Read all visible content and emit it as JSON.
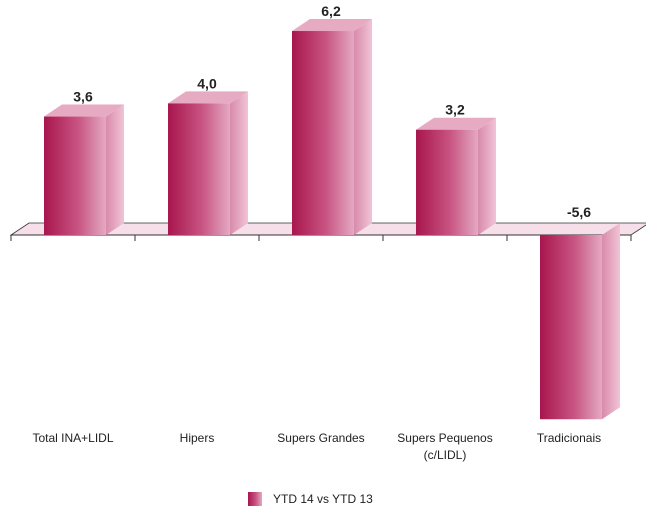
{
  "chart_data": {
    "type": "bar",
    "categories": [
      "Total INA+LIDL",
      "Hipers",
      "Supers Grandes",
      "Supers Pequenos (c/LIDL)",
      "Tradicionais"
    ],
    "category_lines": [
      [
        "Total INA+LIDL"
      ],
      [
        "Hipers"
      ],
      [
        "Supers Grandes"
      ],
      [
        "Supers Pequenos",
        "(c/LIDL)"
      ],
      [
        "Tradicionais"
      ]
    ],
    "series": [
      {
        "name": "YTD 14 vs YTD 13",
        "values": [
          3.6,
          4.0,
          6.2,
          3.2,
          -5.6
        ]
      }
    ],
    "value_labels": [
      "3,6",
      "4,0",
      "6,2",
      "3,2",
      "-5,6"
    ],
    "title": "",
    "xlabel": "",
    "ylabel": "",
    "ylim": [
      -5.6,
      6.2
    ],
    "grid": false,
    "legend": "bottom-center",
    "colors": {
      "bar_dark": "#a8164e",
      "bar_mid": "#c85482",
      "bar_light": "#e4a9c2",
      "top": "#e7aac3",
      "side": "#d98aab",
      "floor": "#f6dfe8"
    }
  },
  "legend": {
    "label": "YTD 14 vs YTD 13"
  }
}
